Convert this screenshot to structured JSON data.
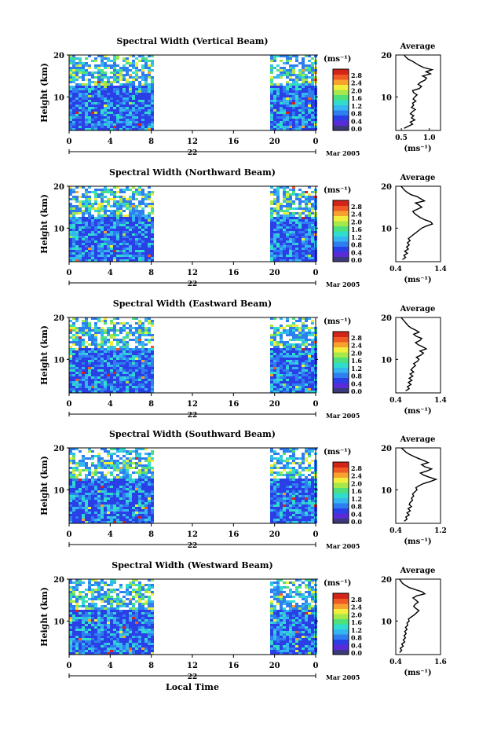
{
  "figure": {
    "x_axis_label": "Local Time",
    "y_axis_label": "Height (km)"
  },
  "colorbar": {
    "unit_label": "(ms⁻¹)",
    "tick_labels": [
      "0.0",
      "0.4",
      "0.8",
      "1.2",
      "1.6",
      "2.0",
      "2.4",
      "2.8"
    ],
    "colors": [
      "#3a3a7a",
      "#5a2ad8",
      "#2a3fe6",
      "#2f7ef0",
      "#34b7f0",
      "#30dccc",
      "#4ee07a",
      "#a6e84a",
      "#f2ee3c",
      "#f7a22e",
      "#f05a25",
      "#d42418"
    ]
  },
  "chart_data": [
    {
      "type": "heatmap",
      "title": "Spectral Width (Vertical Beam)",
      "ylabel": "Height (km)",
      "x_ticks": [
        "0",
        "4",
        "8",
        "12",
        "16",
        "20",
        "0"
      ],
      "xlim": [
        0,
        24
      ],
      "ylim": [
        2,
        20
      ],
      "y_ticks": [
        "10",
        "20"
      ],
      "data_gap_hours": [
        8.5,
        19.5
      ],
      "date_label": "22",
      "month_label": "Mar 2005",
      "colorbar_unit": "(ms⁻¹)",
      "colorbar_ticks": [
        "0.0",
        "0.4",
        "0.8",
        "1.2",
        "1.6",
        "2.0",
        "2.4",
        "2.8"
      ],
      "average_profile": {
        "title": "Average",
        "xlabel": "(ms⁻¹)",
        "xlim": [
          0.4,
          1.2
        ],
        "x_ticks": [
          "0.5",
          "1.0"
        ],
        "y_ticks": [
          "10",
          "20"
        ],
        "height_km": [
          2.5,
          3,
          3.5,
          4,
          4.5,
          5,
          5.5,
          6,
          6.5,
          7,
          7.5,
          8,
          8.5,
          9,
          9.5,
          10,
          10.5,
          11,
          11.5,
          12,
          12.5,
          13,
          13.5,
          14,
          14.5,
          15,
          15.5,
          16,
          16.5,
          17,
          17.5,
          18,
          18.5,
          19,
          19.5,
          20
        ],
        "width_ms": [
          0.55,
          0.62,
          0.7,
          0.66,
          0.74,
          0.68,
          0.72,
          0.66,
          0.7,
          0.75,
          0.68,
          0.72,
          0.7,
          0.76,
          0.71,
          0.74,
          0.78,
          0.72,
          0.7,
          0.82,
          0.86,
          0.8,
          0.84,
          0.92,
          0.95,
          0.88,
          1.02,
          0.94,
          1.05,
          0.9,
          0.82,
          0.76,
          0.7,
          0.62,
          0.58,
          0.55
        ]
      }
    },
    {
      "type": "heatmap",
      "title": "Spectral Width (Northward Beam)",
      "ylabel": "Height (km)",
      "x_ticks": [
        "0",
        "4",
        "8",
        "12",
        "16",
        "20",
        "0"
      ],
      "xlim": [
        0,
        24
      ],
      "ylim": [
        2,
        20
      ],
      "y_ticks": [
        "10",
        "20"
      ],
      "data_gap_hours": [
        8.5,
        19.5
      ],
      "date_label": "22",
      "month_label": "Mar 2005",
      "colorbar_unit": "(ms⁻¹)",
      "colorbar_ticks": [
        "0.0",
        "0.4",
        "0.8",
        "1.2",
        "1.6",
        "2.0",
        "2.4",
        "2.8"
      ],
      "average_profile": {
        "title": "Average",
        "xlabel": "(ms⁻¹)",
        "xlim": [
          0.4,
          1.4
        ],
        "x_ticks": [
          "0.4",
          "1.4"
        ],
        "y_ticks": [
          "10",
          "20"
        ],
        "height_km": [
          2.5,
          3,
          3.5,
          4,
          4.5,
          5,
          5.5,
          6,
          6.5,
          7,
          7.5,
          8,
          8.5,
          9,
          9.5,
          10,
          10.5,
          11,
          11.5,
          12,
          12.5,
          13,
          13.5,
          14,
          14.5,
          15,
          15.5,
          16,
          16.5,
          17,
          17.5,
          18,
          18.5,
          19,
          19.5,
          20
        ],
        "width_ms": [
          0.55,
          0.62,
          0.58,
          0.66,
          0.6,
          0.68,
          0.64,
          0.7,
          0.66,
          0.72,
          0.68,
          0.74,
          0.8,
          0.86,
          0.92,
          0.98,
          1.08,
          1.22,
          1.18,
          1.05,
          0.95,
          0.88,
          0.82,
          0.78,
          0.88,
          0.98,
          0.92,
          0.84,
          1.04,
          0.96,
          0.88,
          0.74,
          0.66,
          0.6,
          0.56,
          0.52
        ]
      }
    },
    {
      "type": "heatmap",
      "title": "Spectral Width (Eastward Beam)",
      "ylabel": "Height (km)",
      "x_ticks": [
        "0",
        "4",
        "8",
        "12",
        "16",
        "20",
        "0"
      ],
      "xlim": [
        0,
        24
      ],
      "ylim": [
        2,
        20
      ],
      "y_ticks": [
        "10",
        "20"
      ],
      "data_gap_hours": [
        8.5,
        19.5
      ],
      "date_label": "22",
      "month_label": "Mar 2005",
      "colorbar_unit": "(ms⁻¹)",
      "colorbar_ticks": [
        "0.0",
        "0.4",
        "0.8",
        "1.2",
        "1.6",
        "2.0",
        "2.4",
        "2.8"
      ],
      "average_profile": {
        "title": "Average",
        "xlabel": "(ms⁻¹)",
        "xlim": [
          0.4,
          1.4
        ],
        "x_ticks": [
          "0.4",
          "1.4"
        ],
        "y_ticks": [
          "10",
          "20"
        ],
        "height_km": [
          2.5,
          3,
          3.5,
          4,
          4.5,
          5,
          5.5,
          6,
          6.5,
          7,
          7.5,
          8,
          8.5,
          9,
          9.5,
          10,
          10.5,
          11,
          11.5,
          12,
          12.5,
          13,
          13.5,
          14,
          14.5,
          15,
          15.5,
          16,
          16.5,
          17,
          17.5,
          18,
          18.5,
          19,
          19.5,
          20
        ],
        "width_ms": [
          0.62,
          0.7,
          0.66,
          0.74,
          0.68,
          0.76,
          0.7,
          0.78,
          0.72,
          0.8,
          0.74,
          0.78,
          0.84,
          0.8,
          0.88,
          0.92,
          0.86,
          0.96,
          1.02,
          0.94,
          1.08,
          1.0,
          0.9,
          0.84,
          0.94,
          0.98,
          0.86,
          0.8,
          0.92,
          0.84,
          0.74,
          0.68,
          0.64,
          0.6,
          0.56,
          0.52
        ]
      }
    },
    {
      "type": "heatmap",
      "title": "Spectral Width (Southward Beam)",
      "ylabel": "Height (km)",
      "x_ticks": [
        "0",
        "4",
        "8",
        "12",
        "16",
        "20",
        "0"
      ],
      "xlim": [
        0,
        24
      ],
      "ylim": [
        2,
        20
      ],
      "y_ticks": [
        "10",
        "20"
      ],
      "data_gap_hours": [
        8.5,
        19.5
      ],
      "date_label": "22",
      "month_label": "Mar 2005",
      "colorbar_unit": "(ms⁻¹)",
      "colorbar_ticks": [
        "0.0",
        "0.4",
        "0.8",
        "1.2",
        "1.6",
        "2.0",
        "2.4",
        "2.8"
      ],
      "average_profile": {
        "title": "Average",
        "xlabel": "(ms⁻¹)",
        "xlim": [
          0.4,
          1.2
        ],
        "x_ticks": [
          "0.4",
          "1.2"
        ],
        "y_ticks": [
          "10",
          "20"
        ],
        "height_km": [
          2.5,
          3,
          3.5,
          4,
          4.5,
          5,
          5.5,
          6,
          6.5,
          7,
          7.5,
          8,
          8.5,
          9,
          9.5,
          10,
          10.5,
          11,
          11.5,
          12,
          12.5,
          13,
          13.5,
          14,
          14.5,
          15,
          15.5,
          16,
          16.5,
          17,
          17.5,
          18,
          18.5,
          19,
          19.5,
          20
        ],
        "width_ms": [
          0.55,
          0.6,
          0.58,
          0.64,
          0.6,
          0.66,
          0.62,
          0.68,
          0.64,
          0.66,
          0.7,
          0.68,
          0.72,
          0.7,
          0.74,
          0.78,
          0.76,
          0.82,
          0.9,
          1.02,
          1.12,
          1.0,
          0.9,
          0.84,
          0.96,
          1.04,
          0.92,
          0.86,
          0.98,
          0.9,
          0.8,
          0.72,
          0.64,
          0.58,
          0.54,
          0.5
        ]
      }
    },
    {
      "type": "heatmap",
      "title": "Spectral Width (Westward Beam)",
      "ylabel": "Height (km)",
      "x_ticks": [
        "0",
        "4",
        "8",
        "12",
        "16",
        "20",
        "0"
      ],
      "xlim": [
        0,
        24
      ],
      "ylim": [
        2,
        20
      ],
      "y_ticks": [
        "10",
        "20"
      ],
      "data_gap_hours": [
        8.5,
        19.5
      ],
      "date_label": "22",
      "month_label": "Mar 2005",
      "colorbar_unit": "(ms⁻¹)",
      "colorbar_ticks": [
        "0.0",
        "0.4",
        "0.8",
        "1.2",
        "1.6",
        "2.0",
        "2.4",
        "2.8"
      ],
      "average_profile": {
        "title": "Average",
        "xlabel": "(ms⁻¹)",
        "xlim": [
          0.4,
          1.6
        ],
        "x_ticks": [
          "0.4",
          "1.6"
        ],
        "y_ticks": [
          "10",
          "20"
        ],
        "height_km": [
          2.5,
          3,
          3.5,
          4,
          4.5,
          5,
          5.5,
          6,
          6.5,
          7,
          7.5,
          8,
          8.5,
          9,
          9.5,
          10,
          10.5,
          11,
          11.5,
          12,
          12.5,
          13,
          13.5,
          14,
          14.5,
          15,
          15.5,
          16,
          16.5,
          17,
          17.5,
          18,
          18.5,
          19,
          19.5,
          20
        ],
        "width_ms": [
          0.5,
          0.56,
          0.52,
          0.6,
          0.56,
          0.64,
          0.6,
          0.66,
          0.62,
          0.68,
          0.64,
          0.7,
          0.66,
          0.72,
          0.7,
          0.76,
          0.74,
          0.82,
          0.9,
          0.96,
          1.02,
          0.94,
          0.88,
          0.92,
          1.0,
          0.94,
          0.86,
          0.96,
          1.18,
          1.1,
          0.92,
          0.76,
          0.66,
          0.58,
          0.54,
          0.5
        ]
      }
    }
  ]
}
